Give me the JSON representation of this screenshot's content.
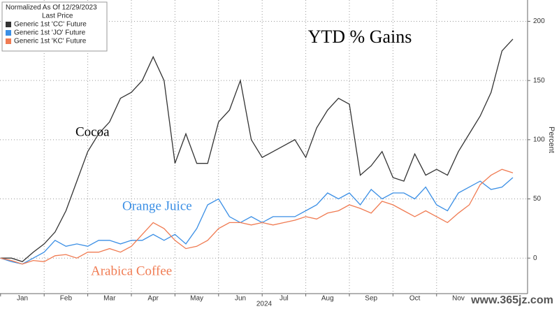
{
  "chart_data": {
    "type": "line",
    "title": "YTD % Gains",
    "legend_header": [
      "Normalized As Of 12/29/2023",
      "Last Price"
    ],
    "legend": "top-left",
    "y_label": "Percent",
    "x_label": "2024",
    "annotations": [
      "Cocoa",
      "Orange Juice",
      "Arabica Coffee"
    ],
    "watermark": "www.365jz.com",
    "categories": [
      null,
      null,
      "Jan",
      null,
      null,
      null,
      "Feb",
      null,
      null,
      null,
      "Mar",
      null,
      null,
      null,
      "Apr",
      null,
      null,
      null,
      "May",
      null,
      null,
      null,
      "Jun",
      null,
      null,
      null,
      "Jul",
      null,
      null,
      null,
      "Aug",
      null,
      null,
      null,
      "Sep",
      null,
      null,
      null,
      "Oct",
      null,
      null,
      null,
      "Nov",
      null,
      null,
      null,
      null,
      null
    ],
    "series": [
      {
        "name": "Generic 1st 'CC' Future",
        "color": "#333333",
        "values": [
          0,
          0,
          -3,
          5,
          12,
          22,
          40,
          65,
          90,
          105,
          115,
          135,
          140,
          150,
          170,
          150,
          80,
          105,
          80,
          80,
          115,
          125,
          150,
          100,
          85,
          90,
          95,
          100,
          85,
          110,
          125,
          135,
          130,
          70,
          78,
          90,
          68,
          65,
          88,
          70,
          75,
          70,
          90,
          105,
          120,
          140,
          175,
          185
        ]
      },
      {
        "name": "Generic 1st 'JO' Future",
        "color": "#3b8fe5",
        "values": [
          0,
          -3,
          -5,
          0,
          5,
          15,
          10,
          12,
          10,
          15,
          15,
          12,
          15,
          15,
          20,
          15,
          20,
          12,
          25,
          45,
          50,
          35,
          30,
          35,
          30,
          35,
          35,
          35,
          40,
          45,
          55,
          50,
          55,
          45,
          58,
          50,
          55,
          55,
          50,
          60,
          45,
          40,
          55,
          60,
          65,
          58,
          60,
          68
        ]
      },
      {
        "name": "Generic 1st 'KC' Future",
        "color": "#f07b52",
        "values": [
          0,
          -2,
          -5,
          -2,
          -3,
          2,
          3,
          0,
          5,
          5,
          8,
          5,
          10,
          20,
          30,
          25,
          15,
          8,
          10,
          15,
          25,
          30,
          30,
          28,
          30,
          28,
          30,
          32,
          35,
          33,
          38,
          40,
          45,
          42,
          38,
          48,
          45,
          40,
          35,
          40,
          35,
          30,
          38,
          45,
          62,
          70,
          75,
          72
        ]
      }
    ],
    "ylim": [
      -30,
      218
    ],
    "yticks": [
      0,
      50,
      100,
      150,
      200
    ],
    "grid": true
  }
}
